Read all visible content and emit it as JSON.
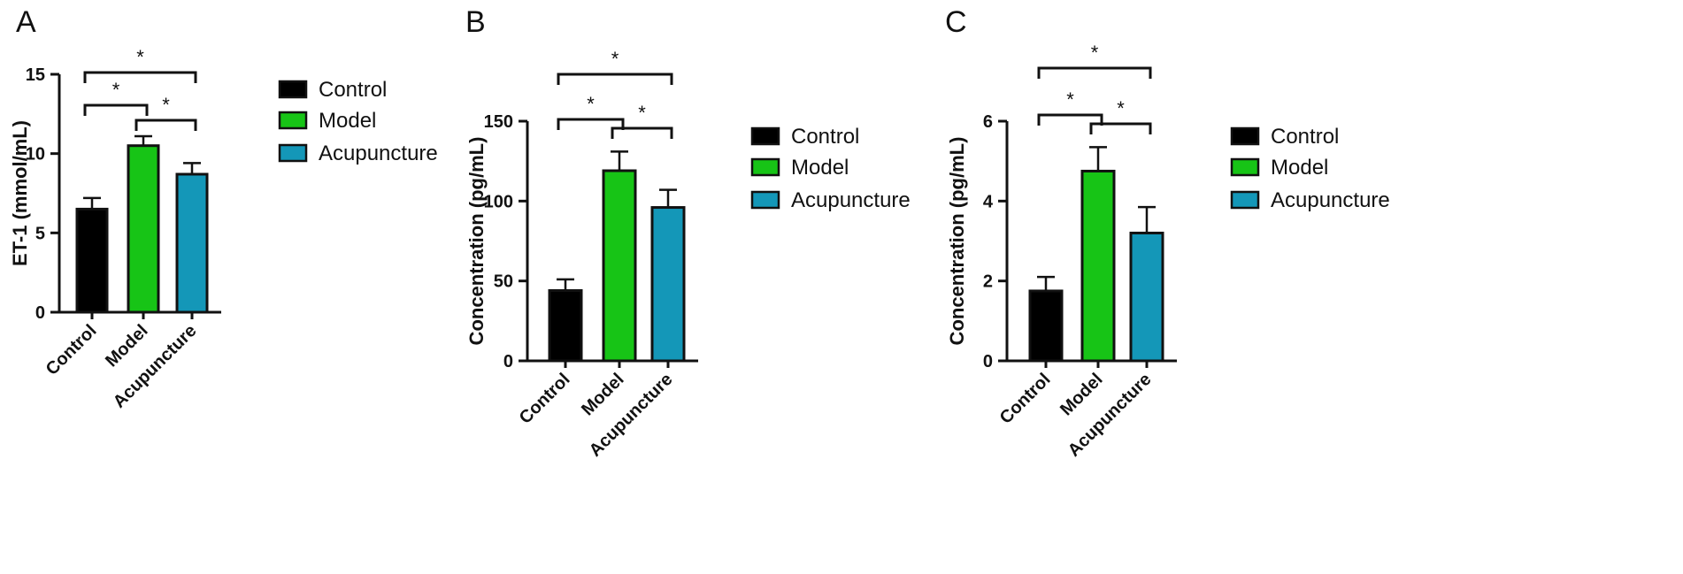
{
  "colors": {
    "control": "#000000",
    "model": "#17c416",
    "acupuncture": "#1497b8"
  },
  "legend": [
    "Control",
    "Model",
    "Acupuncture"
  ],
  "sig_marker": "*",
  "chart_data": [
    {
      "panel": "A",
      "type": "bar",
      "categories": [
        "Control",
        "Model",
        "Acupuncture"
      ],
      "values": [
        6.5,
        10.5,
        8.7
      ],
      "errors": [
        0.7,
        0.6,
        0.7
      ],
      "ylabel": "ET-1 (mmol/mL)",
      "ylim": [
        0,
        15
      ],
      "yticks": [
        "0",
        "5",
        "10",
        "15"
      ],
      "comparisons": [
        {
          "pair": [
            0,
            1
          ],
          "label": "*"
        },
        {
          "pair": [
            1,
            2
          ],
          "label": "*"
        },
        {
          "pair": [
            0,
            2
          ],
          "label": "*"
        }
      ]
    },
    {
      "panel": "B",
      "type": "bar",
      "categories": [
        "Control",
        "Model",
        "Acupuncture"
      ],
      "values": [
        44,
        119,
        96
      ],
      "errors": [
        7,
        12,
        11
      ],
      "ylabel": "Concentration (pg/mL)",
      "ylim": [
        0,
        150
      ],
      "yticks": [
        "0",
        "50",
        "100",
        "150"
      ],
      "comparisons": [
        {
          "pair": [
            0,
            1
          ],
          "label": "*"
        },
        {
          "pair": [
            1,
            2
          ],
          "label": "*"
        },
        {
          "pair": [
            0,
            2
          ],
          "label": "*"
        }
      ]
    },
    {
      "panel": "C",
      "type": "bar",
      "categories": [
        "Control",
        "Model",
        "Acupuncture"
      ],
      "values": [
        1.75,
        4.75,
        3.2
      ],
      "errors": [
        0.35,
        0.6,
        0.65
      ],
      "ylabel": "Concentration (pg/mL)",
      "ylim": [
        0,
        6
      ],
      "yticks": [
        "0",
        "2",
        "4",
        "6"
      ],
      "comparisons": [
        {
          "pair": [
            0,
            1
          ],
          "label": "*"
        },
        {
          "pair": [
            1,
            2
          ],
          "label": "*"
        },
        {
          "pair": [
            0,
            2
          ],
          "label": "*"
        }
      ]
    }
  ]
}
